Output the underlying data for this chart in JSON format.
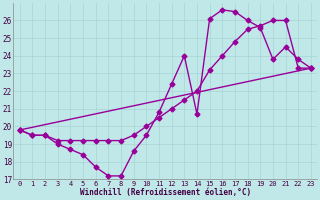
{
  "xlabel": "Windchill (Refroidissement éolien,°C)",
  "xlim": [
    -0.5,
    23.5
  ],
  "ylim": [
    17,
    27
  ],
  "yticks": [
    17,
    18,
    19,
    20,
    21,
    22,
    23,
    24,
    25,
    26
  ],
  "xticks": [
    0,
    1,
    2,
    3,
    4,
    5,
    6,
    7,
    8,
    9,
    10,
    11,
    12,
    13,
    14,
    15,
    16,
    17,
    18,
    19,
    20,
    21,
    22,
    23
  ],
  "background_color": "#c0e8e8",
  "grid_color": "#a8d4d4",
  "line_color": "#990099",
  "line1_x": [
    0,
    1,
    2,
    3,
    4,
    5,
    6,
    7,
    8,
    9,
    10,
    11,
    12,
    13,
    14,
    15,
    16,
    17,
    18,
    19,
    20,
    21,
    22,
    23
  ],
  "line1_y": [
    19.8,
    19.5,
    19.5,
    19.0,
    18.7,
    18.4,
    17.7,
    17.2,
    17.2,
    18.6,
    19.5,
    20.8,
    22.4,
    24.0,
    20.7,
    26.1,
    26.6,
    26.5,
    26.0,
    25.6,
    23.8,
    24.5,
    23.8,
    23.3
  ],
  "line2_x": [
    0,
    1,
    2,
    3,
    4,
    5,
    6,
    7,
    8,
    9,
    10,
    11,
    12,
    13,
    14,
    15,
    16,
    17,
    18,
    19,
    20,
    21,
    22,
    23
  ],
  "line2_y": [
    19.8,
    19.5,
    19.5,
    19.2,
    19.2,
    19.2,
    19.2,
    19.2,
    19.2,
    19.5,
    20.0,
    20.5,
    21.0,
    21.5,
    22.0,
    23.2,
    24.0,
    24.8,
    25.5,
    25.7,
    26.0,
    26.0,
    23.3,
    23.3
  ],
  "line3_x": [
    0,
    23
  ],
  "line3_y": [
    19.8,
    23.3
  ],
  "marker": "D",
  "markersize": 2.5,
  "linewidth": 1.0
}
